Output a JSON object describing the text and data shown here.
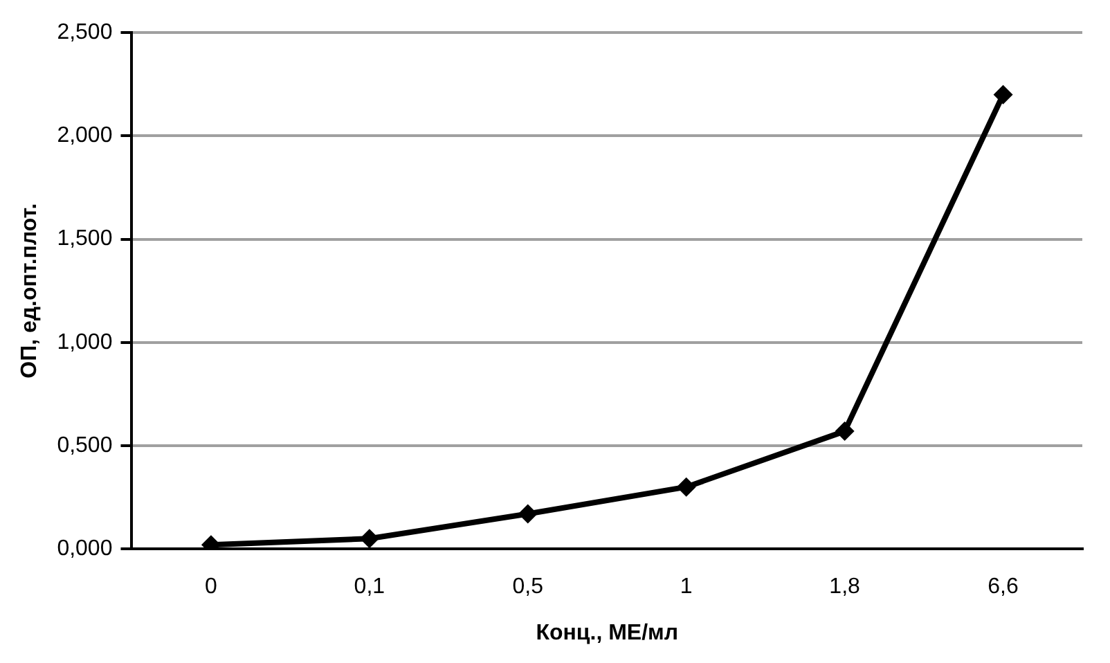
{
  "chart_data": {
    "type": "line",
    "xlabel": "Конц., МЕ/мл",
    "ylabel": "ОП, ед.опт.плот.",
    "categories": [
      "0",
      "0,1",
      "0,5",
      "1",
      "1,8",
      "6,6"
    ],
    "series": [
      {
        "color": "#000000",
        "values": [
          0.02,
          0.05,
          0.17,
          0.3,
          0.57,
          2.2
        ]
      }
    ],
    "ylim": [
      0,
      2.5
    ],
    "yticks": [
      {
        "value": 0,
        "label": "0,000"
      },
      {
        "value": 0.5,
        "label": "0,500"
      },
      {
        "value": 1,
        "label": "1,000"
      },
      {
        "value": 1.5,
        "label": "1,500"
      },
      {
        "value": 2,
        "label": "2,000"
      },
      {
        "value": 2.5,
        "label": "2,500"
      }
    ],
    "grid": "y",
    "legend": false,
    "marker": "diamond",
    "line_style": "solid"
  }
}
